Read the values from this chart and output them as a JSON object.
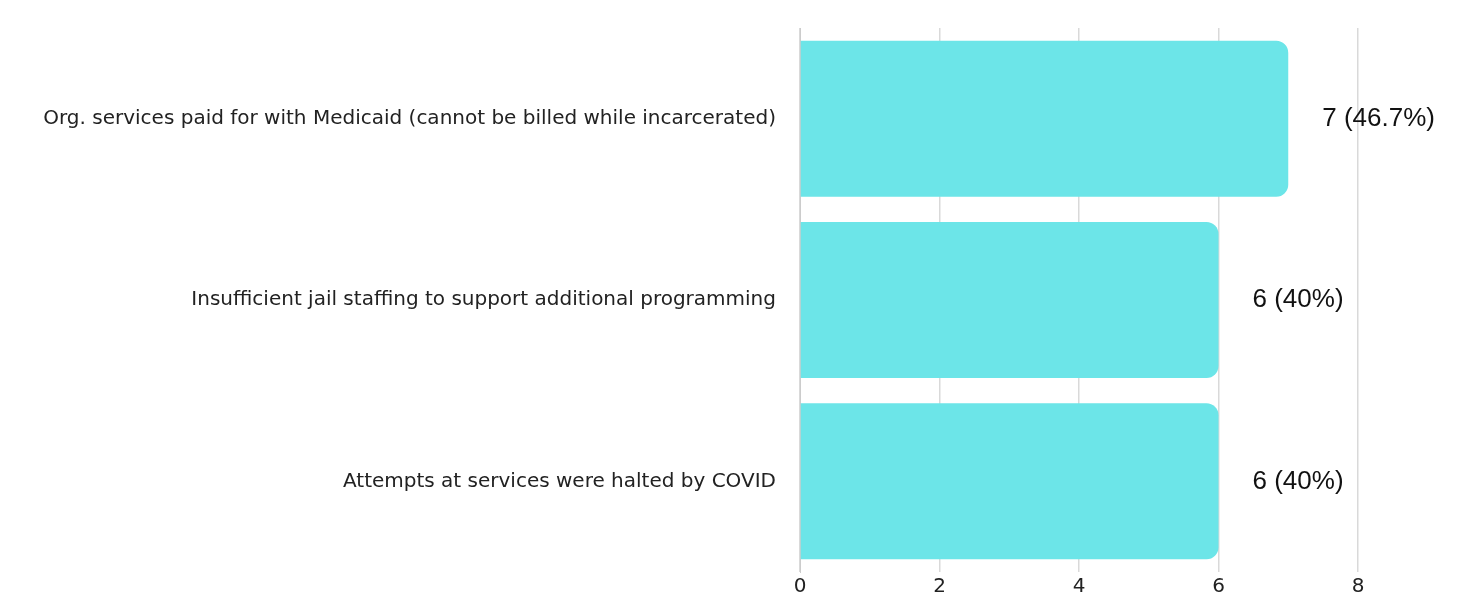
{
  "chart_data": {
    "type": "bar",
    "orientation": "horizontal",
    "categories": [
      "Org. services paid for with Medicaid (cannot be billed while incarcerated)",
      "Insufficient jail staffing to support additional programming",
      "Attempts at services were halted by COVID"
    ],
    "values": [
      7,
      6,
      6
    ],
    "color": "#6ce5e8",
    "value_labels": [
      "7 (46.7%)",
      "6 (40%)",
      "6 (40%)"
    ],
    "xlim": [
      0,
      8
    ],
    "xticks": [
      0,
      2,
      4,
      6,
      8
    ],
    "grid": "x",
    "legend": false
  }
}
